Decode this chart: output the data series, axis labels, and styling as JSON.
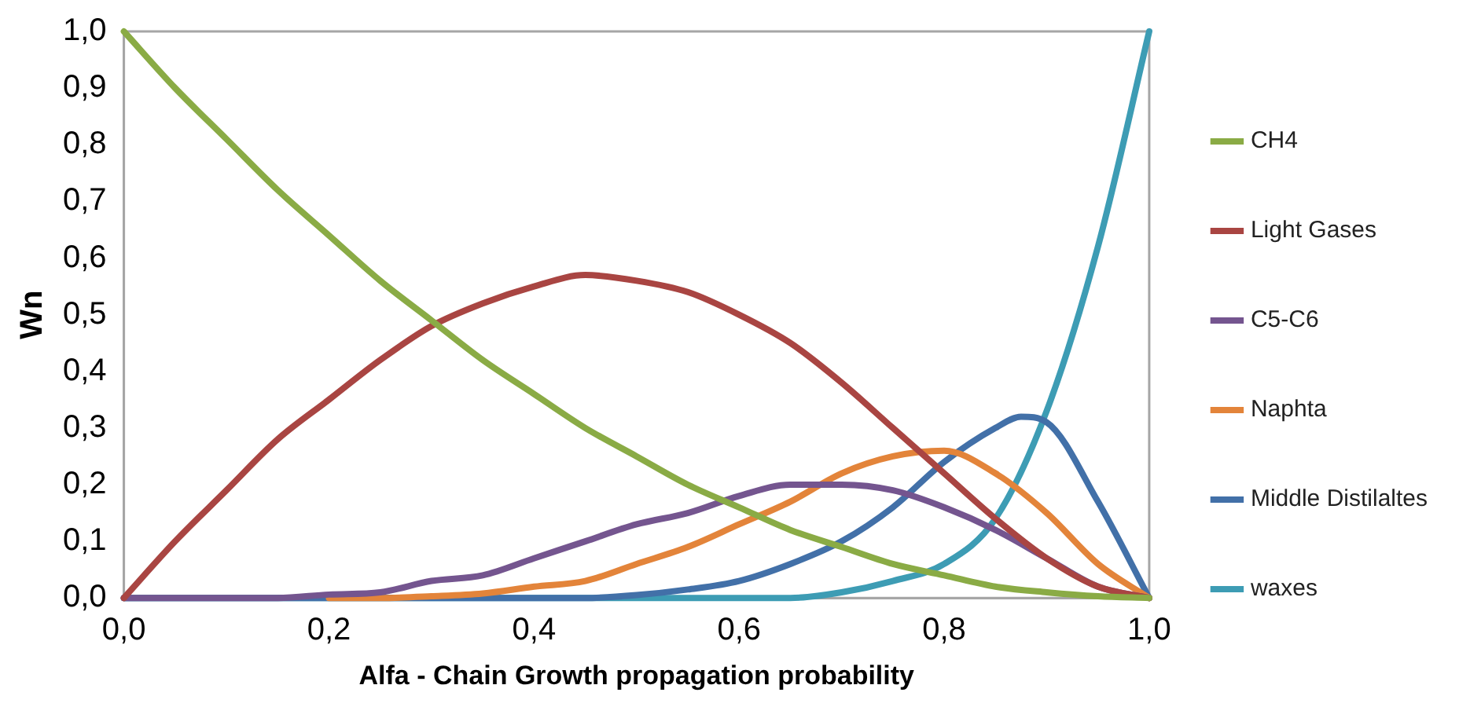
{
  "chart_data": {
    "type": "line",
    "xlabel": "Alfa - Chain Growth propagation probability",
    "ylabel": "Wn",
    "x": [
      0,
      0.05,
      0.1,
      0.15,
      0.2,
      0.25,
      0.3,
      0.35,
      0.4,
      0.45,
      0.5,
      0.55,
      0.6,
      0.65,
      0.7,
      0.75,
      0.8,
      0.85,
      0.9,
      0.95,
      1
    ],
    "series": [
      {
        "name": "CH4",
        "color": "#8aab45",
        "values": [
          1,
          0.9,
          0.81,
          0.72,
          0.64,
          0.56,
          0.49,
          0.42,
          0.36,
          0.3,
          0.25,
          0.2,
          0.16,
          0.12,
          0.09,
          0.06,
          0.04,
          0.02,
          0.01,
          0.003,
          0
        ]
      },
      {
        "name": "Light Gases",
        "color": "#a94542",
        "values": [
          0,
          0.1,
          0.19,
          0.28,
          0.35,
          0.42,
          0.48,
          0.52,
          0.55,
          0.57,
          0.56,
          0.54,
          0.5,
          0.45,
          0.38,
          0.3,
          0.22,
          0.14,
          0.07,
          0.02,
          0
        ]
      },
      {
        "name": "C5-C6",
        "color": "#74558f",
        "values": [
          0,
          0,
          0,
          0,
          0.006,
          0.01,
          0.03,
          0.04,
          0.07,
          0.1,
          0.13,
          0.15,
          0.18,
          0.2,
          0.2,
          0.19,
          0.16,
          0.12,
          0.07,
          0.02,
          0
        ]
      },
      {
        "name": "Naphta",
        "color": "#e3843a",
        "values": [
          null,
          null,
          null,
          null,
          0,
          0,
          0.003,
          0.008,
          0.02,
          0.03,
          0.06,
          0.09,
          0.13,
          0.17,
          0.22,
          0.25,
          0.26,
          0.22,
          0.15,
          0.06,
          0
        ]
      },
      {
        "name": "Middle Distilaltes",
        "color": "#4270a8",
        "x": [
          0,
          0.1,
          0.2,
          0.3,
          0.4,
          0.45,
          0.5,
          0.55,
          0.6,
          0.65,
          0.7,
          0.75,
          0.8,
          0.85,
          0.875,
          0.9,
          0.95,
          1
        ],
        "values": [
          0,
          0,
          0,
          0,
          0,
          0,
          0.005,
          0.015,
          0.03,
          0.06,
          0.1,
          0.16,
          0.24,
          0.3,
          0.32,
          0.31,
          0.17,
          0
        ]
      },
      {
        "name": "waxes",
        "color": "#3d9cb4",
        "values": [
          0,
          0,
          0,
          0,
          0,
          0,
          0,
          0,
          0,
          0,
          0,
          0,
          0,
          0,
          0.01,
          0.03,
          0.06,
          0.14,
          0.33,
          0.62,
          1
        ]
      }
    ],
    "xlim": [
      0,
      1
    ],
    "xticks": [
      {
        "value": 0,
        "label": "0,0"
      },
      {
        "value": 0.2,
        "label": "0,2"
      },
      {
        "value": 0.4,
        "label": "0,4"
      },
      {
        "value": 0.6,
        "label": "0,6"
      },
      {
        "value": 0.8,
        "label": "0,8"
      },
      {
        "value": 1,
        "label": "1,0"
      }
    ],
    "ylim": [
      0,
      1
    ],
    "yticks": [
      {
        "value": 0,
        "label": "0,0"
      },
      {
        "value": 0.1,
        "label": "0,1"
      },
      {
        "value": 0.2,
        "label": "0,2"
      },
      {
        "value": 0.3,
        "label": "0,3"
      },
      {
        "value": 0.4,
        "label": "0,4"
      },
      {
        "value": 0.5,
        "label": "0,5"
      },
      {
        "value": 0.6,
        "label": "0,6"
      },
      {
        "value": 0.7,
        "label": "0,7"
      },
      {
        "value": 0.8,
        "label": "0,8"
      },
      {
        "value": 0.9,
        "label": "0,9"
      },
      {
        "value": 1,
        "label": "1,0"
      }
    ],
    "grid": false,
    "legend": "right",
    "marker": "none",
    "line_style": "solid"
  }
}
